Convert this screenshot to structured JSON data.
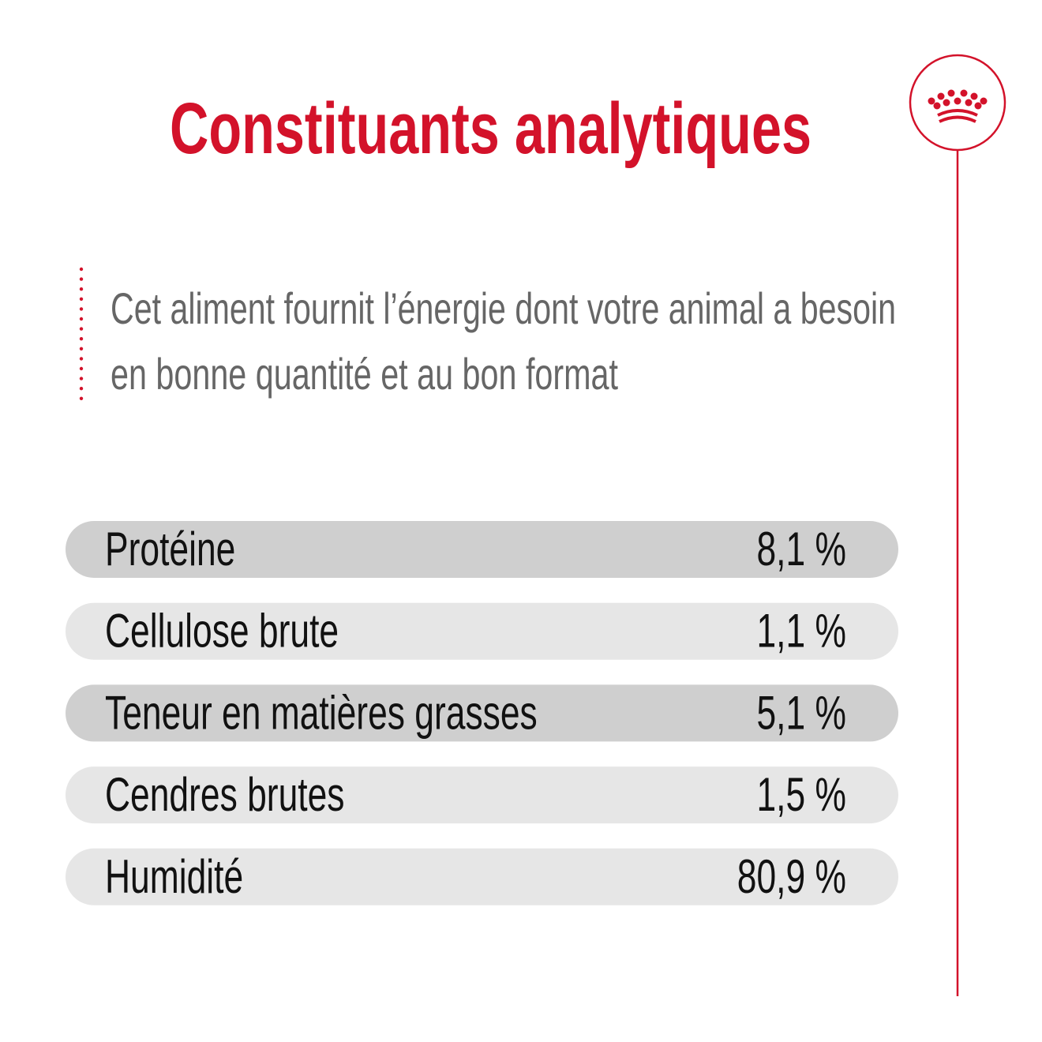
{
  "title": "Constituants analytiques",
  "description": [
    "Cet aliment fournit l’énergie dont votre animal a besoin",
    "en bonne quantité et au bon format"
  ],
  "table": {
    "rows": [
      [
        "Protéine",
        "8,1 %"
      ],
      [
        "Cellulose brute",
        "1,1 %"
      ],
      [
        "Teneur en matières grasses",
        "5,1 %"
      ],
      [
        "Cendres brutes",
        "1,5 %"
      ],
      [
        "Humidité",
        "80,9 %"
      ]
    ]
  }
}
